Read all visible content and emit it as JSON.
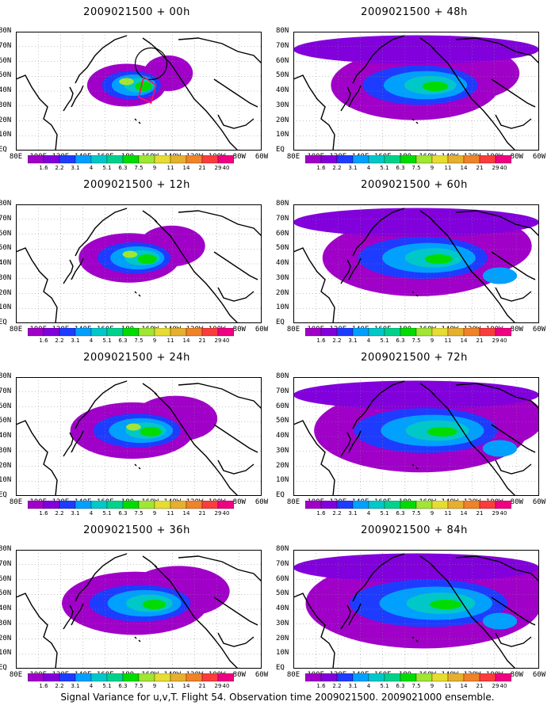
{
  "panels": [
    {
      "title": "2009021500 + 00h",
      "lead": 0
    },
    {
      "title": "2009021500 + 48h",
      "lead": 48
    },
    {
      "title": "2009021500 + 12h",
      "lead": 12
    },
    {
      "title": "2009021500 + 60h",
      "lead": 60
    },
    {
      "title": "2009021500 + 24h",
      "lead": 24
    },
    {
      "title": "2009021500 + 72h",
      "lead": 72
    },
    {
      "title": "2009021500 + 36h",
      "lead": 36
    },
    {
      "title": "2009021500 + 84h",
      "lead": 84
    }
  ],
  "lat_labels": [
    "80N",
    "70N",
    "60N",
    "50N",
    "40N",
    "30N",
    "20N",
    "10N",
    "EQ"
  ],
  "lon_labels": [
    "80E",
    "100E",
    "120E",
    "140E",
    "160E",
    "180",
    "160W",
    "140W",
    "120W",
    "100W",
    "80W",
    "60W"
  ],
  "colorbar": {
    "levels": [
      "1.6",
      "2.2",
      "3.1",
      "4",
      "5.1",
      "6.3",
      "7.5",
      "9",
      "11",
      "14",
      "21",
      "29",
      "40"
    ],
    "colors": [
      "#a000c8",
      "#8200dc",
      "#1e3cff",
      "#00a0ff",
      "#00c8c8",
      "#00d28c",
      "#00dc00",
      "#a0e632",
      "#e6dc32",
      "#e6af2d",
      "#f08228",
      "#fa3c3c",
      "#f00082"
    ]
  },
  "footer": "Signal Variance for u,v,T. Flight 54. Observation time 2009021500. 2009021000 ensemble."
}
